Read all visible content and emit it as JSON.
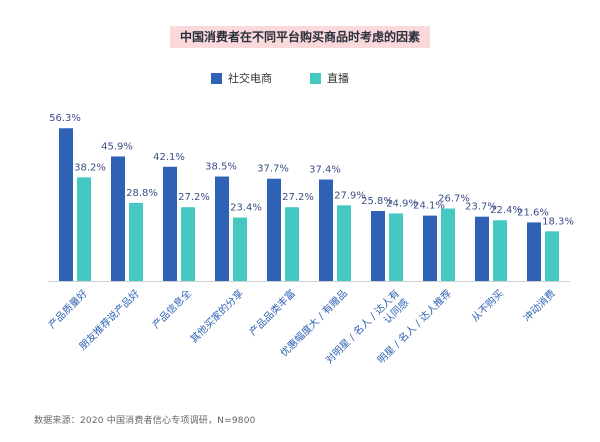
{
  "colors": {
    "series1": "#2f62b4",
    "series2": "#45c8c2",
    "value_text": "#3d4f87",
    "axis_text": "#2f62b4"
  },
  "chart_data": {
    "type": "bar",
    "title": "中国消费者在不同平台购买商品时考虑的因素",
    "categories": [
      "产品质量好",
      "朋友推荐说产品好",
      "产品信息全",
      "其他买家的分享",
      "产品品类丰富",
      "优惠幅度大 / 有赠品",
      "对明星 / 名人 / 达人有认同感",
      "明星 / 名人 / 达人推荐",
      "从不购买",
      "冲动消费"
    ],
    "series": [
      {
        "name": "社交电商",
        "values": [
          56.3,
          45.9,
          42.1,
          38.5,
          37.7,
          37.4,
          25.8,
          24.1,
          23.7,
          21.6
        ]
      },
      {
        "name": "直播",
        "values": [
          38.2,
          28.8,
          27.2,
          23.4,
          27.2,
          27.9,
          24.9,
          26.7,
          22.4,
          18.3
        ]
      }
    ],
    "value_labels": [
      [
        "56.3%",
        "45.9%",
        "42.1%",
        "38.5%",
        "37.7%",
        "37.4%",
        "25.8%",
        "24.1%",
        "23.7%",
        "21.6%"
      ],
      [
        "38.2%",
        "28.8%",
        "27.2%",
        "23.4%",
        "27.2%",
        "27.9%",
        "24.9%",
        "26.7%",
        "22.4%",
        "18.3%"
      ]
    ],
    "category_lines": [
      [
        "产品质量好"
      ],
      [
        "朋友推荐说产品好"
      ],
      [
        "产品信息全"
      ],
      [
        "其他买家的分享"
      ],
      [
        "产品品类丰富"
      ],
      [
        "优惠幅度大 / 有赠品"
      ],
      [
        "对明星 / 名人 / 达人有",
        "认同感"
      ],
      [
        "明星 / 名人 / 达人推荐"
      ],
      [
        "从不购买"
      ],
      [
        "冲动消费"
      ]
    ],
    "ylim": [
      0,
      60
    ],
    "grid": false,
    "legend_position": "top-center"
  },
  "source": "数据来源：2020 中国消费者信心专项调研，N=9800"
}
